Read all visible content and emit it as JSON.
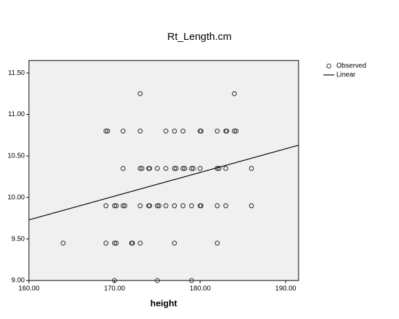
{
  "chart_data": {
    "type": "scatter",
    "title": "Rt_Length.cm",
    "x_label": "height",
    "xlim": [
      160,
      191.5
    ],
    "ylim": [
      9,
      11.65
    ],
    "xticks": [
      {
        "value": 160,
        "label": "160.00"
      },
      {
        "value": 170,
        "label": "170.00"
      },
      {
        "value": 180,
        "label": "180.00"
      },
      {
        "value": 190,
        "label": "190.00"
      }
    ],
    "yticks": [
      {
        "value": 9,
        "label": "9.00"
      },
      {
        "value": 9.5,
        "label": "9.50"
      },
      {
        "value": 10,
        "label": "10.00"
      },
      {
        "value": 10.5,
        "label": "10.50"
      },
      {
        "value": 11,
        "label": "11.00"
      },
      {
        "value": 11.5,
        "label": "11.50"
      }
    ],
    "legend": "right",
    "series": [
      {
        "name": "Observed",
        "color": "#333333",
        "type": "scatter",
        "x": [
          170,
          175,
          179,
          164,
          169,
          170,
          170.2,
          172,
          172.1,
          173,
          177,
          182,
          169,
          170,
          170.2,
          171,
          171.2,
          173,
          174,
          174.1,
          175,
          175.2,
          176,
          177,
          178,
          179,
          180,
          180.1,
          182,
          183,
          186,
          171,
          173,
          173.2,
          174,
          174.1,
          175,
          176,
          177,
          177.2,
          178,
          178.2,
          179,
          179.2,
          180,
          182,
          182.2,
          183,
          186,
          169,
          169.2,
          171,
          173,
          176,
          177,
          178,
          180,
          180.1,
          182,
          183,
          183.1,
          184,
          184.2,
          173,
          184
        ],
        "values": [
          9,
          9,
          9,
          9.45,
          9.45,
          9.45,
          9.45,
          9.45,
          9.45,
          9.45,
          9.45,
          9.45,
          9.9,
          9.9,
          9.9,
          9.9,
          9.9,
          9.9,
          9.9,
          9.9,
          9.9,
          9.9,
          9.9,
          9.9,
          9.9,
          9.9,
          9.9,
          9.9,
          9.9,
          9.9,
          9.9,
          10.35,
          10.35,
          10.35,
          10.35,
          10.35,
          10.35,
          10.35,
          10.35,
          10.35,
          10.35,
          10.35,
          10.35,
          10.35,
          10.35,
          10.35,
          10.35,
          10.35,
          10.35,
          10.8,
          10.8,
          10.8,
          10.8,
          10.8,
          10.8,
          10.8,
          10.8,
          10.8,
          10.8,
          10.8,
          10.8,
          10.8,
          10.8,
          11.25,
          11.25
        ]
      },
      {
        "name": "Linear",
        "color": "#000000",
        "type": "line",
        "x": [
          160,
          191.5
        ],
        "values": [
          9.73,
          10.63
        ]
      }
    ]
  }
}
